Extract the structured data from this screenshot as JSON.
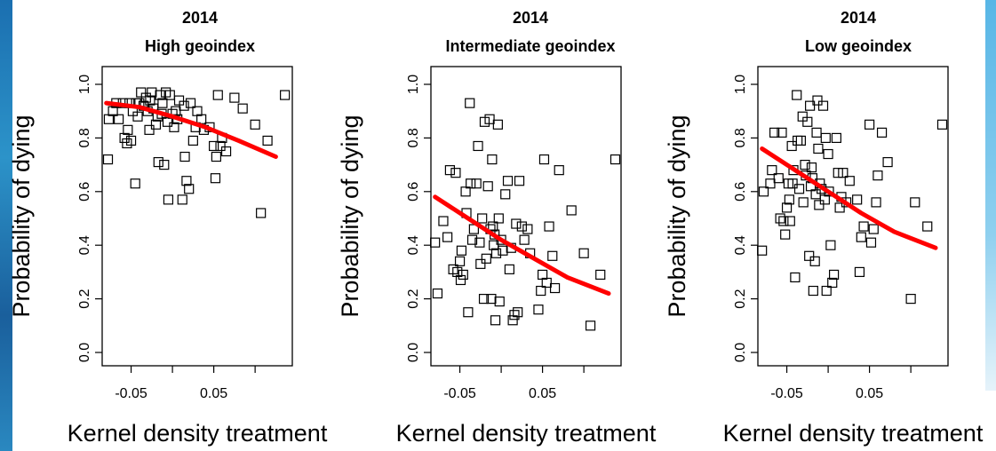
{
  "chart_data": [
    {
      "type": "scatter",
      "title": "2014",
      "subtitle": "High geoindex",
      "xlabel": "Kernel density treatment",
      "ylabel": "Probability of dying",
      "xlim": [
        -0.085,
        0.145
      ],
      "ylim": [
        0.0,
        1.0
      ],
      "xticks": [
        -0.05,
        0.05
      ],
      "xtick_labels": [
        "-0.05",
        "0.05"
      ],
      "yticks": [
        0.0,
        0.2,
        0.4,
        0.6,
        0.8,
        1.0
      ],
      "ytick_labels": [
        "0.0",
        "0.2",
        "0.4",
        "0.6",
        "0.8",
        "1.0"
      ],
      "trend_color": "#ff0000",
      "point_color": "#000000",
      "trend": [
        [
          -0.08,
          0.93
        ],
        [
          -0.04,
          0.915
        ],
        [
          0.0,
          0.88
        ],
        [
          0.04,
          0.84
        ],
        [
          0.08,
          0.79
        ],
        [
          0.125,
          0.73
        ]
      ],
      "points": [
        [
          -0.078,
          0.72
        ],
        [
          -0.077,
          0.87
        ],
        [
          -0.072,
          0.9
        ],
        [
          -0.068,
          0.93
        ],
        [
          -0.065,
          0.87
        ],
        [
          -0.06,
          0.93
        ],
        [
          -0.058,
          0.8
        ],
        [
          -0.055,
          0.78
        ],
        [
          -0.054,
          0.83
        ],
        [
          -0.052,
          0.93
        ],
        [
          -0.05,
          0.79
        ],
        [
          -0.048,
          0.9
        ],
        [
          -0.045,
          0.63
        ],
        [
          -0.044,
          0.93
        ],
        [
          -0.042,
          0.88
        ],
        [
          -0.04,
          0.93
        ],
        [
          -0.038,
          0.97
        ],
        [
          -0.035,
          0.92
        ],
        [
          -0.032,
          0.95
        ],
        [
          -0.03,
          0.9
        ],
        [
          -0.028,
          0.83
        ],
        [
          -0.027,
          0.94
        ],
        [
          -0.025,
          0.97
        ],
        [
          -0.023,
          0.91
        ],
        [
          -0.02,
          0.85
        ],
        [
          -0.018,
          0.88
        ],
        [
          -0.017,
          0.71
        ],
        [
          -0.015,
          0.96
        ],
        [
          -0.013,
          0.89
        ],
        [
          -0.012,
          0.93
        ],
        [
          -0.01,
          0.7
        ],
        [
          -0.008,
          0.97
        ],
        [
          -0.006,
          0.86
        ],
        [
          -0.005,
          0.57
        ],
        [
          -0.003,
          0.96
        ],
        [
          0.0,
          0.89
        ],
        [
          0.002,
          0.84
        ],
        [
          0.004,
          0.9
        ],
        [
          0.006,
          0.87
        ],
        [
          0.008,
          0.94
        ],
        [
          0.012,
          0.57
        ],
        [
          0.014,
          0.92
        ],
        [
          0.015,
          0.73
        ],
        [
          0.017,
          0.64
        ],
        [
          0.02,
          0.61
        ],
        [
          0.022,
          0.93
        ],
        [
          0.025,
          0.79
        ],
        [
          0.028,
          0.84
        ],
        [
          0.03,
          0.9
        ],
        [
          0.035,
          0.87
        ],
        [
          0.038,
          0.83
        ],
        [
          0.045,
          0.84
        ],
        [
          0.05,
          0.77
        ],
        [
          0.052,
          0.65
        ],
        [
          0.053,
          0.73
        ],
        [
          0.055,
          0.96
        ],
        [
          0.058,
          0.77
        ],
        [
          0.06,
          0.8
        ],
        [
          0.065,
          0.75
        ],
        [
          0.075,
          0.95
        ],
        [
          0.085,
          0.91
        ],
        [
          0.1,
          0.85
        ],
        [
          0.107,
          0.52
        ],
        [
          0.115,
          0.79
        ],
        [
          0.136,
          0.96
        ]
      ]
    },
    {
      "type": "scatter",
      "title": "2014",
      "subtitle": "Intermediate geoindex",
      "xlabel": "Kernel density treatment",
      "ylabel": "Probability of dying",
      "xlim": [
        -0.085,
        0.145
      ],
      "ylim": [
        0.0,
        1.0
      ],
      "xticks": [
        -0.05,
        0.05
      ],
      "xtick_labels": [
        "-0.05",
        "0.05"
      ],
      "yticks": [
        0.0,
        0.2,
        0.4,
        0.6,
        0.8,
        1.0
      ],
      "ytick_labels": [
        "0.0",
        "0.2",
        "0.4",
        "0.6",
        "0.8",
        "1.0"
      ],
      "trend_color": "#ff0000",
      "point_color": "#000000",
      "trend": [
        [
          -0.08,
          0.58
        ],
        [
          -0.04,
          0.5
        ],
        [
          0.0,
          0.42
        ],
        [
          0.04,
          0.35
        ],
        [
          0.08,
          0.28
        ],
        [
          0.13,
          0.22
        ]
      ],
      "points": [
        [
          -0.08,
          0.41
        ],
        [
          -0.077,
          0.22
        ],
        [
          -0.07,
          0.49
        ],
        [
          -0.065,
          0.43
        ],
        [
          -0.062,
          0.68
        ],
        [
          -0.058,
          0.31
        ],
        [
          -0.055,
          0.67
        ],
        [
          -0.053,
          0.3
        ],
        [
          -0.05,
          0.34
        ],
        [
          -0.049,
          0.27
        ],
        [
          -0.048,
          0.38
        ],
        [
          -0.046,
          0.29
        ],
        [
          -0.043,
          0.6
        ],
        [
          -0.042,
          0.52
        ],
        [
          -0.04,
          0.15
        ],
        [
          -0.038,
          0.93
        ],
        [
          -0.037,
          0.63
        ],
        [
          -0.035,
          0.42
        ],
        [
          -0.033,
          0.46
        ],
        [
          -0.03,
          0.63
        ],
        [
          -0.028,
          0.77
        ],
        [
          -0.026,
          0.41
        ],
        [
          -0.025,
          0.33
        ],
        [
          -0.023,
          0.5
        ],
        [
          -0.021,
          0.2
        ],
        [
          -0.02,
          0.86
        ],
        [
          -0.018,
          0.35
        ],
        [
          -0.016,
          0.62
        ],
        [
          -0.014,
          0.87
        ],
        [
          -0.013,
          0.46
        ],
        [
          -0.012,
          0.2
        ],
        [
          -0.011,
          0.72
        ],
        [
          -0.01,
          0.47
        ],
        [
          -0.009,
          0.4
        ],
        [
          -0.008,
          0.44
        ],
        [
          -0.007,
          0.12
        ],
        [
          -0.006,
          0.37
        ],
        [
          -0.004,
          0.85
        ],
        [
          -0.003,
          0.5
        ],
        [
          -0.002,
          0.19
        ],
        [
          0.0,
          0.42
        ],
        [
          0.002,
          0.38
        ],
        [
          0.005,
          0.59
        ],
        [
          0.008,
          0.64
        ],
        [
          0.01,
          0.31
        ],
        [
          0.012,
          0.39
        ],
        [
          0.014,
          0.12
        ],
        [
          0.016,
          0.14
        ],
        [
          0.018,
          0.48
        ],
        [
          0.02,
          0.15
        ],
        [
          0.022,
          0.64
        ],
        [
          0.025,
          0.47
        ],
        [
          0.028,
          0.42
        ],
        [
          0.032,
          0.46
        ],
        [
          0.035,
          0.37
        ],
        [
          0.045,
          0.16
        ],
        [
          0.048,
          0.23
        ],
        [
          0.05,
          0.29
        ],
        [
          0.052,
          0.72
        ],
        [
          0.055,
          0.26
        ],
        [
          0.058,
          0.47
        ],
        [
          0.062,
          0.36
        ],
        [
          0.065,
          0.24
        ],
        [
          0.07,
          0.68
        ],
        [
          0.085,
          0.53
        ],
        [
          0.1,
          0.37
        ],
        [
          0.108,
          0.1
        ],
        [
          0.12,
          0.29
        ],
        [
          0.138,
          0.72
        ]
      ]
    },
    {
      "type": "scatter",
      "title": "2014",
      "subtitle": "Low geoindex",
      "xlabel": "Kernel density treatment",
      "ylabel": "Probability of dying",
      "xlim": [
        -0.085,
        0.145
      ],
      "ylim": [
        0.0,
        1.0
      ],
      "xticks": [
        -0.05,
        0.05
      ],
      "xtick_labels": [
        "-0.05",
        "0.05"
      ],
      "yticks": [
        0.0,
        0.2,
        0.4,
        0.6,
        0.8,
        1.0
      ],
      "ytick_labels": [
        "0.0",
        "0.2",
        "0.4",
        "0.6",
        "0.8",
        "1.0"
      ],
      "trend_color": "#ff0000",
      "point_color": "#000000",
      "trend": [
        [
          -0.08,
          0.76
        ],
        [
          -0.04,
          0.68
        ],
        [
          0.0,
          0.6
        ],
        [
          0.04,
          0.52
        ],
        [
          0.08,
          0.45
        ],
        [
          0.13,
          0.39
        ]
      ],
      "points": [
        [
          -0.08,
          0.38
        ],
        [
          -0.078,
          0.6
        ],
        [
          -0.07,
          0.63
        ],
        [
          -0.068,
          0.68
        ],
        [
          -0.065,
          0.82
        ],
        [
          -0.06,
          0.65
        ],
        [
          -0.058,
          0.5
        ],
        [
          -0.056,
          0.82
        ],
        [
          -0.054,
          0.49
        ],
        [
          -0.052,
          0.44
        ],
        [
          -0.05,
          0.54
        ],
        [
          -0.048,
          0.63
        ],
        [
          -0.047,
          0.57
        ],
        [
          -0.046,
          0.49
        ],
        [
          -0.044,
          0.77
        ],
        [
          -0.043,
          0.63
        ],
        [
          -0.042,
          0.68
        ],
        [
          -0.04,
          0.28
        ],
        [
          -0.038,
          0.96
        ],
        [
          -0.037,
          0.79
        ],
        [
          -0.035,
          0.61
        ],
        [
          -0.033,
          0.79
        ],
        [
          -0.031,
          0.88
        ],
        [
          -0.03,
          0.56
        ],
        [
          -0.028,
          0.7
        ],
        [
          -0.027,
          0.66
        ],
        [
          -0.025,
          0.86
        ],
        [
          -0.023,
          0.36
        ],
        [
          -0.022,
          0.92
        ],
        [
          -0.021,
          0.62
        ],
        [
          -0.02,
          0.69
        ],
        [
          -0.019,
          0.65
        ],
        [
          -0.018,
          0.23
        ],
        [
          -0.016,
          0.34
        ],
        [
          -0.015,
          0.59
        ],
        [
          -0.014,
          0.82
        ],
        [
          -0.013,
          0.94
        ],
        [
          -0.012,
          0.76
        ],
        [
          -0.011,
          0.55
        ],
        [
          -0.01,
          0.63
        ],
        [
          -0.008,
          0.61
        ],
        [
          -0.006,
          0.92
        ],
        [
          -0.004,
          0.57
        ],
        [
          -0.003,
          0.8
        ],
        [
          -0.002,
          0.23
        ],
        [
          0.0,
          0.74
        ],
        [
          0.001,
          0.6
        ],
        [
          0.003,
          0.4
        ],
        [
          0.005,
          0.26
        ],
        [
          0.007,
          0.29
        ],
        [
          0.01,
          0.8
        ],
        [
          0.012,
          0.67
        ],
        [
          0.014,
          0.54
        ],
        [
          0.016,
          0.58
        ],
        [
          0.018,
          0.67
        ],
        [
          0.022,
          0.56
        ],
        [
          0.026,
          0.64
        ],
        [
          0.035,
          0.57
        ],
        [
          0.038,
          0.3
        ],
        [
          0.04,
          0.43
        ],
        [
          0.043,
          0.47
        ],
        [
          0.05,
          0.85
        ],
        [
          0.052,
          0.41
        ],
        [
          0.055,
          0.46
        ],
        [
          0.058,
          0.56
        ],
        [
          0.06,
          0.66
        ],
        [
          0.065,
          0.82
        ],
        [
          0.072,
          0.71
        ],
        [
          0.1,
          0.2
        ],
        [
          0.105,
          0.56
        ],
        [
          0.12,
          0.47
        ],
        [
          0.138,
          0.85
        ]
      ]
    }
  ]
}
